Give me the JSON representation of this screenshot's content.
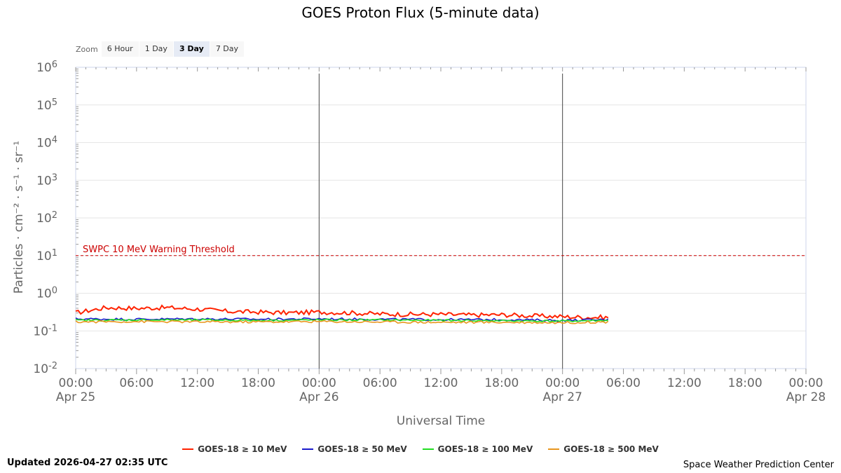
{
  "title": "GOES Proton Flux (5-minute data)",
  "zoom": {
    "label": "Zoom",
    "buttons": [
      {
        "label": "6 Hour",
        "active": false
      },
      {
        "label": "1 Day",
        "active": false
      },
      {
        "label": "3 Day",
        "active": true
      },
      {
        "label": "7 Day",
        "active": false
      }
    ]
  },
  "updated": "Updated 2026-04-27 02:35 UTC",
  "credit": "Space Weather Prediction Center",
  "chart_data": {
    "type": "line",
    "title": "GOES Proton Flux (5-minute data)",
    "xlabel": "Universal Time",
    "ylabel": "Particles · cm⁻² · s⁻¹ · sr⁻¹",
    "y_scale": "log",
    "ylim_exponent": [
      -2,
      6
    ],
    "y_tick_labels": [
      {
        "base": "10",
        "exp": "6"
      },
      {
        "base": "10",
        "exp": "5"
      },
      {
        "base": "10",
        "exp": "4"
      },
      {
        "base": "10",
        "exp": "3"
      },
      {
        "base": "10",
        "exp": "2"
      },
      {
        "base": "10",
        "exp": "1"
      },
      {
        "base": "10",
        "exp": "0"
      },
      {
        "base": "10",
        "exp": "-1"
      },
      {
        "base": "10",
        "exp": "-2"
      }
    ],
    "x_range_hours": [
      0,
      72
    ],
    "x_ticks": [
      {
        "time": "00:00",
        "date": "Apr 25"
      },
      {
        "time": "06:00",
        "date": ""
      },
      {
        "time": "12:00",
        "date": ""
      },
      {
        "time": "18:00",
        "date": ""
      },
      {
        "time": "00:00",
        "date": "Apr 26"
      },
      {
        "time": "06:00",
        "date": ""
      },
      {
        "time": "12:00",
        "date": ""
      },
      {
        "time": "18:00",
        "date": ""
      },
      {
        "time": "00:00",
        "date": "Apr 27"
      },
      {
        "time": "06:00",
        "date": ""
      },
      {
        "time": "12:00",
        "date": ""
      },
      {
        "time": "18:00",
        "date": ""
      },
      {
        "time": "00:00",
        "date": "Apr 28"
      }
    ],
    "day_lines_hours": [
      24,
      48
    ],
    "threshold": {
      "label": "SWPC 10 MeV Warning Threshold",
      "exponent": 1,
      "color": "#cc0000"
    },
    "grid": true,
    "legend_position": "bottom-center",
    "series": [
      {
        "name": "GOES-18 ≥ 10 MeV",
        "color": "#ff2200",
        "points": [
          [
            0,
            -0.52
          ],
          [
            3,
            -0.38
          ],
          [
            6,
            -0.4
          ],
          [
            9,
            -0.38
          ],
          [
            12,
            -0.42
          ],
          [
            15,
            -0.48
          ],
          [
            18,
            -0.5
          ],
          [
            21,
            -0.52
          ],
          [
            24,
            -0.5
          ],
          [
            27,
            -0.52
          ],
          [
            30,
            -0.55
          ],
          [
            33,
            -0.56
          ],
          [
            36,
            -0.56
          ],
          [
            39,
            -0.58
          ],
          [
            42,
            -0.57
          ],
          [
            45,
            -0.6
          ],
          [
            48,
            -0.62
          ],
          [
            50,
            -0.64
          ],
          [
            52.5,
            -0.64
          ]
        ]
      },
      {
        "name": "GOES-18 ≥ 50 MeV",
        "color": "#1a1acc",
        "points": [
          [
            0,
            -0.68
          ],
          [
            6,
            -0.69
          ],
          [
            12,
            -0.68
          ],
          [
            18,
            -0.69
          ],
          [
            24,
            -0.68
          ],
          [
            30,
            -0.69
          ],
          [
            36,
            -0.7
          ],
          [
            42,
            -0.7
          ],
          [
            48,
            -0.72
          ],
          [
            52.5,
            -0.7
          ]
        ]
      },
      {
        "name": "GOES-18 ≥ 100 MeV",
        "color": "#22dd22",
        "points": [
          [
            0,
            -0.72
          ],
          [
            6,
            -0.71
          ],
          [
            12,
            -0.71
          ],
          [
            18,
            -0.72
          ],
          [
            24,
            -0.71
          ],
          [
            30,
            -0.71
          ],
          [
            36,
            -0.72
          ],
          [
            42,
            -0.73
          ],
          [
            48,
            -0.74
          ],
          [
            52.5,
            -0.72
          ]
        ]
      },
      {
        "name": "GOES-18 ≥ 500 MeV",
        "color": "#e8961e",
        "points": [
          [
            0,
            -0.76
          ],
          [
            6,
            -0.75
          ],
          [
            12,
            -0.76
          ],
          [
            18,
            -0.76
          ],
          [
            24,
            -0.75
          ],
          [
            30,
            -0.76
          ],
          [
            36,
            -0.77
          ],
          [
            42,
            -0.77
          ],
          [
            48,
            -0.78
          ],
          [
            52.5,
            -0.76
          ]
        ]
      }
    ]
  }
}
